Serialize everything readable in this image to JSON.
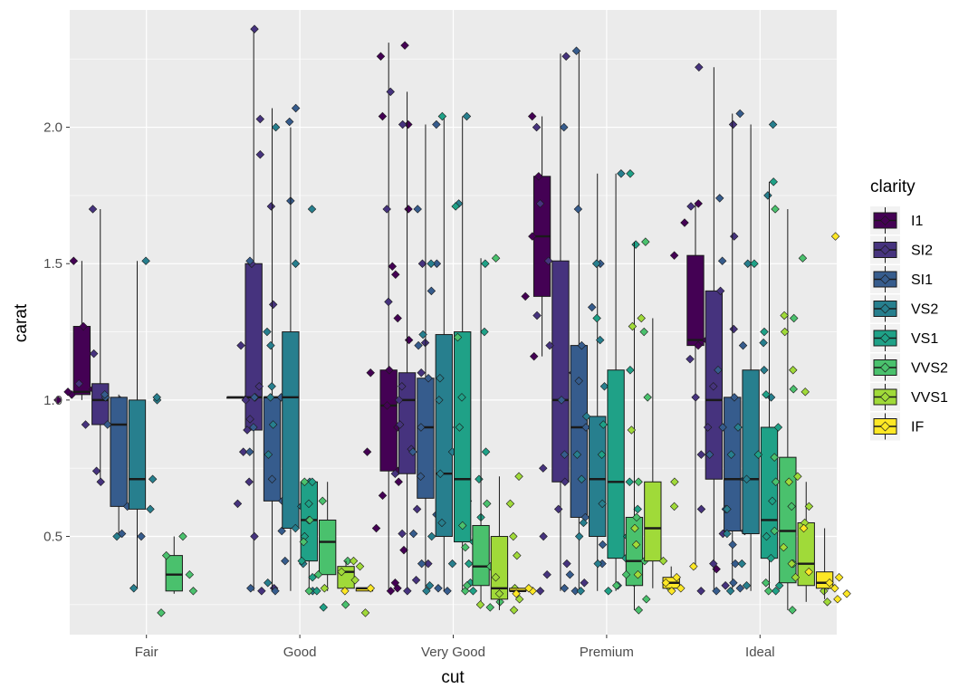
{
  "chart_data": {
    "type": "boxplot",
    "xlabel": "cut",
    "ylabel": "carat",
    "categories": [
      "Fair",
      "Good",
      "Very Good",
      "Premium",
      "Ideal"
    ],
    "ylim": [
      0.14,
      2.43
    ],
    "yticks": [
      0.5,
      1.0,
      1.5,
      2.0
    ],
    "ytick_labels": [
      "0.5",
      "1.0",
      "1.5",
      "2.0"
    ],
    "grid": true,
    "legend": {
      "title": "clarity",
      "position": "right"
    },
    "colors": {
      "panel": "#EBEBEB",
      "grid": "#FFFFFF",
      "I1": "#440154",
      "SI2": "#46337E",
      "SI1": "#365C8D",
      "VS2": "#277F8E",
      "VS1": "#1FA187",
      "VVS2": "#4AC16D",
      "VVS1": "#A0DA39",
      "IF": "#FDE725"
    },
    "series": [
      {
        "name": "I1",
        "boxes": [
          {
            "cut": "Fair",
            "min": 1.0,
            "q1": 1.02,
            "median": 1.03,
            "q3": 1.27,
            "max": 1.51,
            "points": [
              1.0,
              1.01,
              1.02,
              1.03,
              1.04,
              1.27,
              1.51
            ]
          },
          {
            "cut": "Good",
            "min": 1.01,
            "q1": 1.01,
            "median": 1.01,
            "q3": 1.01,
            "max": 1.01,
            "points": [
              1.01,
              1.01
            ]
          },
          {
            "cut": "Very Good",
            "min": 0.3,
            "q1": 0.74,
            "median": 0.98,
            "q3": 1.11,
            "max": 2.31,
            "points": [
              0.3,
              0.31,
              0.33,
              0.45,
              0.53,
              0.65,
              0.7,
              0.74,
              0.81,
              0.9,
              0.98,
              1.0,
              1.05,
              1.1,
              1.11,
              1.22,
              1.3,
              1.46,
              1.49,
              1.7,
              2.01,
              2.04,
              2.26,
              2.3
            ]
          },
          {
            "cut": "Premium",
            "min": 1.16,
            "q1": 1.38,
            "median": 1.6,
            "q3": 1.82,
            "max": 2.04,
            "points": [
              1.16,
              1.38,
              1.6,
              1.82,
              2.04
            ]
          },
          {
            "cut": "Ideal",
            "min": 0.38,
            "q1": 1.2,
            "median": 1.22,
            "q3": 1.53,
            "max": 1.72,
            "points": [
              0.38,
              1.2,
              1.22,
              1.25,
              1.53,
              1.65,
              1.72
            ]
          }
        ]
      },
      {
        "name": "SI2",
        "boxes": [
          {
            "cut": "Fair",
            "min": 0.7,
            "q1": 0.91,
            "median": 1.0,
            "q3": 1.06,
            "max": 1.7,
            "points": [
              0.7,
              0.74,
              0.91,
              1.0,
              1.06,
              1.17,
              1.7
            ]
          },
          {
            "cut": "Good",
            "min": 0.3,
            "q1": 0.89,
            "median": 1.01,
            "q3": 1.5,
            "max": 2.36,
            "points": [
              0.3,
              0.31,
              0.5,
              0.62,
              0.7,
              0.81,
              0.89,
              0.93,
              1.0,
              1.01,
              1.05,
              1.2,
              1.35,
              1.5,
              1.71,
              1.9,
              2.03,
              2.36
            ]
          },
          {
            "cut": "Very Good",
            "min": 0.3,
            "q1": 0.73,
            "median": 1.0,
            "q3": 1.1,
            "max": 2.13,
            "points": [
              0.3,
              0.34,
              0.4,
              0.51,
              0.6,
              0.73,
              0.82,
              0.91,
              1.0,
              1.05,
              1.1,
              1.21,
              1.36,
              1.5,
              1.7,
              2.01,
              2.13
            ]
          },
          {
            "cut": "Premium",
            "min": 0.3,
            "q1": 0.7,
            "median": 1.0,
            "q3": 1.51,
            "max": 2.27,
            "points": [
              0.3,
              0.33,
              0.36,
              0.4,
              0.5,
              0.6,
              0.7,
              0.75,
              0.82,
              0.9,
              1.0,
              1.01,
              1.04,
              1.1,
              1.2,
              1.31,
              1.51,
              1.72,
              2.0,
              2.26
            ]
          },
          {
            "cut": "Ideal",
            "min": 0.3,
            "q1": 0.71,
            "median": 1.0,
            "q3": 1.4,
            "max": 2.22,
            "points": [
              0.3,
              0.32,
              0.4,
              0.51,
              0.6,
              0.71,
              0.8,
              0.9,
              1.0,
              1.01,
              1.05,
              1.15,
              1.26,
              1.4,
              1.6,
              1.71,
              2.01,
              2.22
            ]
          }
        ]
      },
      {
        "name": "SI1",
        "boxes": [
          {
            "cut": "Fair",
            "min": 0.5,
            "q1": 0.61,
            "median": 0.91,
            "q3": 1.01,
            "max": 1.02,
            "points": [
              0.5,
              0.51,
              0.61,
              0.91,
              1.01,
              1.02
            ]
          },
          {
            "cut": "Good",
            "min": 0.3,
            "q1": 0.63,
            "median": 1.01,
            "q3": 1.01,
            "max": 2.07,
            "points": [
              0.3,
              0.31,
              0.41,
              0.52,
              0.63,
              0.71,
              0.81,
              0.9,
              1.0,
              1.01,
              1.01,
              1.2,
              1.51,
              1.73,
              2.02,
              2.07
            ]
          },
          {
            "cut": "Very Good",
            "min": 0.3,
            "q1": 0.64,
            "median": 0.9,
            "q3": 1.08,
            "max": 2.01,
            "points": [
              0.3,
              0.31,
              0.4,
              0.51,
              0.58,
              0.64,
              0.72,
              0.81,
              0.9,
              1.0,
              1.08,
              1.2,
              1.4,
              1.5,
              1.7,
              2.01
            ]
          },
          {
            "cut": "Premium",
            "min": 0.3,
            "q1": 0.57,
            "median": 0.9,
            "q3": 1.2,
            "max": 2.28,
            "points": [
              0.3,
              0.31,
              0.36,
              0.4,
              0.47,
              0.57,
              0.62,
              0.71,
              0.8,
              0.9,
              1.0,
              1.07,
              1.2,
              1.34,
              1.5,
              1.7,
              2.0,
              2.28
            ]
          },
          {
            "cut": "Ideal",
            "min": 0.3,
            "q1": 0.52,
            "median": 0.71,
            "q3": 1.01,
            "max": 2.05,
            "points": [
              0.3,
              0.31,
              0.33,
              0.4,
              0.47,
              0.52,
              0.6,
              0.71,
              0.8,
              0.9,
              1.01,
              1.11,
              1.2,
              1.51,
              1.74,
              2.05
            ]
          }
        ]
      },
      {
        "name": "VS2",
        "boxes": [
          {
            "cut": "Fair",
            "min": 0.31,
            "q1": 0.6,
            "median": 0.71,
            "q3": 1.0,
            "max": 1.51,
            "points": [
              0.31,
              0.5,
              0.6,
              0.71,
              1.0,
              1.01,
              1.51
            ]
          },
          {
            "cut": "Good",
            "min": 0.3,
            "q1": 0.53,
            "median": 1.01,
            "q3": 1.25,
            "max": 2.0,
            "points": [
              0.3,
              0.33,
              0.4,
              0.53,
              0.61,
              0.7,
              0.8,
              0.91,
              1.01,
              1.05,
              1.2,
              1.25,
              1.5,
              1.7,
              2.0
            ]
          },
          {
            "cut": "Very Good",
            "min": 0.3,
            "q1": 0.5,
            "median": 0.73,
            "q3": 1.24,
            "max": 2.04,
            "points": [
              0.3,
              0.32,
              0.4,
              0.5,
              0.55,
              0.63,
              0.73,
              0.81,
              0.9,
              1.0,
              1.08,
              1.24,
              1.5,
              1.72,
              2.04
            ]
          },
          {
            "cut": "Premium",
            "min": 0.3,
            "q1": 0.5,
            "median": 0.71,
            "q3": 0.94,
            "max": 1.83,
            "points": [
              0.3,
              0.32,
              0.4,
              0.5,
              0.55,
              0.62,
              0.71,
              0.8,
              0.94,
              1.05,
              1.22,
              1.5,
              1.83
            ]
          },
          {
            "cut": "Ideal",
            "min": 0.3,
            "q1": 0.51,
            "median": 0.71,
            "q3": 1.11,
            "max": 2.01,
            "points": [
              0.3,
              0.32,
              0.4,
              0.51,
              0.6,
              0.71,
              0.8,
              0.9,
              1.01,
              1.11,
              1.21,
              1.5,
              1.75,
              2.01
            ]
          }
        ]
      },
      {
        "name": "VS1",
        "boxes": [
          {
            "cut": "Good",
            "min": 0.3,
            "q1": 0.41,
            "median": 0.56,
            "q3": 0.7,
            "max": 0.7,
            "points": [
              0.24,
              0.3,
              0.35,
              0.41,
              0.5,
              0.56,
              0.62,
              0.7
            ]
          },
          {
            "cut": "Very Good",
            "min": 0.3,
            "q1": 0.48,
            "median": 0.71,
            "q3": 1.25,
            "max": 2.04,
            "points": [
              0.3,
              0.33,
              0.4,
              0.48,
              0.57,
              0.71,
              0.81,
              0.9,
              1.01,
              1.25,
              1.5,
              1.71,
              2.04
            ]
          },
          {
            "cut": "Premium",
            "min": 0.3,
            "q1": 0.42,
            "median": 0.7,
            "q3": 1.11,
            "max": 1.83,
            "points": [
              0.3,
              0.33,
              0.42,
              0.5,
              0.6,
              0.7,
              0.8,
              0.91,
              1.11,
              1.3,
              1.57,
              1.83
            ]
          },
          {
            "cut": "Ideal",
            "min": 0.3,
            "q1": 0.42,
            "median": 0.56,
            "q3": 0.9,
            "max": 1.8,
            "points": [
              0.3,
              0.32,
              0.42,
              0.5,
              0.56,
              0.63,
              0.72,
              0.8,
              0.9,
              1.02,
              1.25,
              1.5,
              1.8
            ]
          }
        ]
      },
      {
        "name": "VVS2",
        "boxes": [
          {
            "cut": "Fair",
            "min": 0.29,
            "q1": 0.3,
            "median": 0.36,
            "q3": 0.43,
            "max": 0.5,
            "points": [
              0.22,
              0.3,
              0.36,
              0.43,
              0.5
            ]
          },
          {
            "cut": "Good",
            "min": 0.3,
            "q1": 0.36,
            "median": 0.48,
            "q3": 0.56,
            "max": 0.7,
            "points": [
              0.25,
              0.3,
              0.36,
              0.41,
              0.48,
              0.56,
              0.63,
              0.7
            ]
          },
          {
            "cut": "Very Good",
            "min": 0.24,
            "q1": 0.32,
            "median": 0.39,
            "q3": 0.54,
            "max": 1.52,
            "points": [
              0.24,
              0.26,
              0.3,
              0.32,
              0.35,
              0.39,
              0.46,
              0.54,
              0.62,
              1.23,
              1.52
            ]
          },
          {
            "cut": "Premium",
            "min": 0.23,
            "q1": 0.32,
            "median": 0.41,
            "q3": 0.57,
            "max": 1.58,
            "points": [
              0.23,
              0.27,
              0.32,
              0.36,
              0.41,
              0.5,
              0.57,
              0.7,
              1.01,
              1.25,
              1.58
            ]
          },
          {
            "cut": "Ideal",
            "min": 0.23,
            "q1": 0.33,
            "median": 0.52,
            "q3": 0.79,
            "max": 1.7,
            "points": [
              0.23,
              0.3,
              0.33,
              0.4,
              0.52,
              0.61,
              0.7,
              0.79,
              1.04,
              1.3,
              1.52,
              1.7
            ]
          }
        ]
      },
      {
        "name": "VVS1",
        "boxes": [
          {
            "cut": "Good",
            "min": 0.31,
            "q1": 0.31,
            "median": 0.37,
            "q3": 0.39,
            "max": 0.41,
            "points": [
              0.22,
              0.31,
              0.34,
              0.37,
              0.39,
              0.41
            ]
          },
          {
            "cut": "Very Good",
            "min": 0.23,
            "q1": 0.27,
            "median": 0.31,
            "q3": 0.5,
            "max": 0.72,
            "points": [
              0.23,
              0.25,
              0.27,
              0.29,
              0.31,
              0.35,
              0.43,
              0.5,
              0.62,
              0.72
            ]
          },
          {
            "cut": "Premium",
            "min": 0.31,
            "q1": 0.41,
            "median": 0.53,
            "q3": 0.7,
            "max": 1.3,
            "points": [
              0.31,
              0.36,
              0.41,
              0.47,
              0.53,
              0.61,
              0.7,
              0.89,
              1.27,
              1.3
            ]
          },
          {
            "cut": "Ideal",
            "min": 0.26,
            "q1": 0.32,
            "median": 0.4,
            "q3": 0.55,
            "max": 0.7,
            "points": [
              0.26,
              0.3,
              0.32,
              0.35,
              0.4,
              0.46,
              0.55,
              0.61,
              0.7,
              0.72,
              1.03,
              1.11,
              1.25,
              1.31
            ]
          }
        ]
      },
      {
        "name": "IF",
        "boxes": [
          {
            "cut": "Good",
            "min": 0.3,
            "q1": 0.3,
            "median": 0.31,
            "q3": 0.31,
            "max": 0.31,
            "points": [
              0.3,
              0.31
            ]
          },
          {
            "cut": "Very Good",
            "min": 0.3,
            "q1": 0.3,
            "median": 0.3,
            "q3": 0.31,
            "max": 0.31,
            "points": [
              0.29,
              0.3,
              0.31
            ]
          },
          {
            "cut": "Premium",
            "min": 0.3,
            "q1": 0.31,
            "median": 0.33,
            "q3": 0.35,
            "max": 0.39,
            "points": [
              0.3,
              0.31,
              0.33,
              0.35,
              0.39
            ]
          },
          {
            "cut": "Ideal",
            "min": 0.27,
            "q1": 0.31,
            "median": 0.33,
            "q3": 0.37,
            "max": 0.53,
            "points": [
              0.27,
              0.29,
              0.31,
              0.33,
              0.35,
              0.37,
              0.53,
              1.6
            ]
          }
        ]
      }
    ]
  }
}
